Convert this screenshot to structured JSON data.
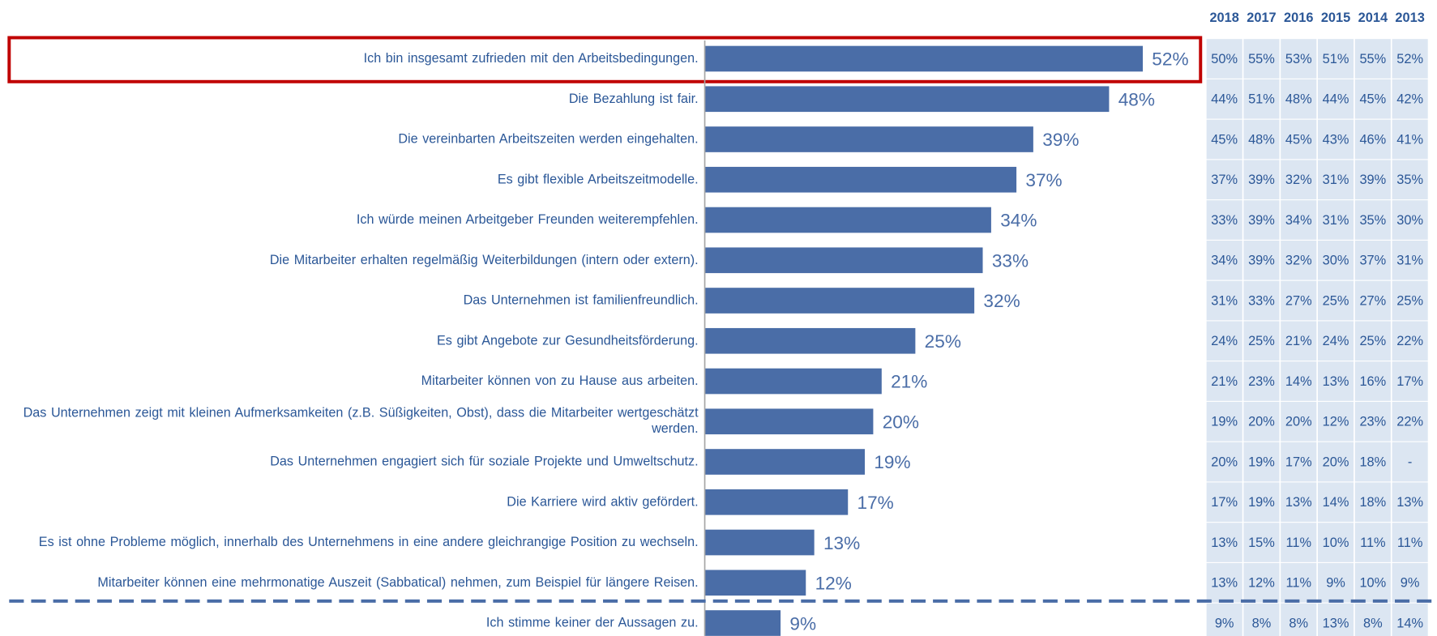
{
  "chart_data": {
    "type": "bar",
    "categories": [
      "Ich bin insgesamt zufrieden mit den Arbeitsbedingungen.",
      "Die Bezahlung ist fair.",
      "Die vereinbarten Arbeitszeiten werden eingehalten.",
      "Es gibt flexible Arbeitszeitmodelle.",
      "Ich würde meinen Arbeitgeber Freunden weiterempfehlen.",
      "Die Mitarbeiter erhalten regelmäßig Weiterbildungen (intern oder extern).",
      "Das Unternehmen ist familienfreundlich.",
      "Es gibt Angebote zur Gesundheitsförderung.",
      "Mitarbeiter können von zu Hause aus arbeiten.",
      "Das Unternehmen zeigt mit kleinen Aufmerksamkeiten (z.B. Süßigkeiten, Obst), dass die Mitarbeiter wertgeschätzt werden.",
      "Das Unternehmen engagiert sich für soziale Projekte und Umweltschutz.",
      "Die Karriere wird aktiv gefördert.",
      "Es ist ohne Probleme möglich, innerhalb des Unternehmens in eine andere gleichrangige Position zu wechseln.",
      "Mitarbeiter können eine mehrmonatige Auszeit (Sabbatical) nehmen, zum Beispiel für längere Reisen.",
      "Ich stimme keiner der Aussagen zu."
    ],
    "values": [
      52,
      48,
      39,
      37,
      34,
      33,
      32,
      25,
      21,
      20,
      19,
      17,
      13,
      12,
      9
    ],
    "value_labels": [
      "52%",
      "48%",
      "39%",
      "37%",
      "34%",
      "33%",
      "32%",
      "25%",
      "21%",
      "20%",
      "19%",
      "17%",
      "13%",
      "12%",
      "9%"
    ],
    "color": "#4a6da7",
    "xlim": [
      0,
      60
    ]
  },
  "table": {
    "header": [
      "2018",
      "2017",
      "2016",
      "2015",
      "2014",
      "2013"
    ],
    "rows": [
      [
        "50%",
        "55%",
        "53%",
        "51%",
        "55%",
        "52%"
      ],
      [
        "44%",
        "51%",
        "48%",
        "44%",
        "45%",
        "42%"
      ],
      [
        "45%",
        "48%",
        "45%",
        "43%",
        "46%",
        "41%"
      ],
      [
        "37%",
        "39%",
        "32%",
        "31%",
        "39%",
        "35%"
      ],
      [
        "33%",
        "39%",
        "34%",
        "31%",
        "35%",
        "30%"
      ],
      [
        "34%",
        "39%",
        "32%",
        "30%",
        "37%",
        "31%"
      ],
      [
        "31%",
        "33%",
        "27%",
        "25%",
        "27%",
        "25%"
      ],
      [
        "24%",
        "25%",
        "21%",
        "24%",
        "25%",
        "22%"
      ],
      [
        "21%",
        "23%",
        "14%",
        "13%",
        "16%",
        "17%"
      ],
      [
        "19%",
        "20%",
        "20%",
        "12%",
        "23%",
        "22%"
      ],
      [
        "20%",
        "19%",
        "17%",
        "20%",
        "18%",
        "-"
      ],
      [
        "17%",
        "19%",
        "13%",
        "14%",
        "18%",
        "13%"
      ],
      [
        "13%",
        "15%",
        "11%",
        "10%",
        "11%",
        "11%"
      ],
      [
        "13%",
        "12%",
        "11%",
        "9%",
        "10%",
        "9%"
      ],
      [
        "9%",
        "8%",
        "8%",
        "13%",
        "8%",
        "14%"
      ]
    ]
  }
}
